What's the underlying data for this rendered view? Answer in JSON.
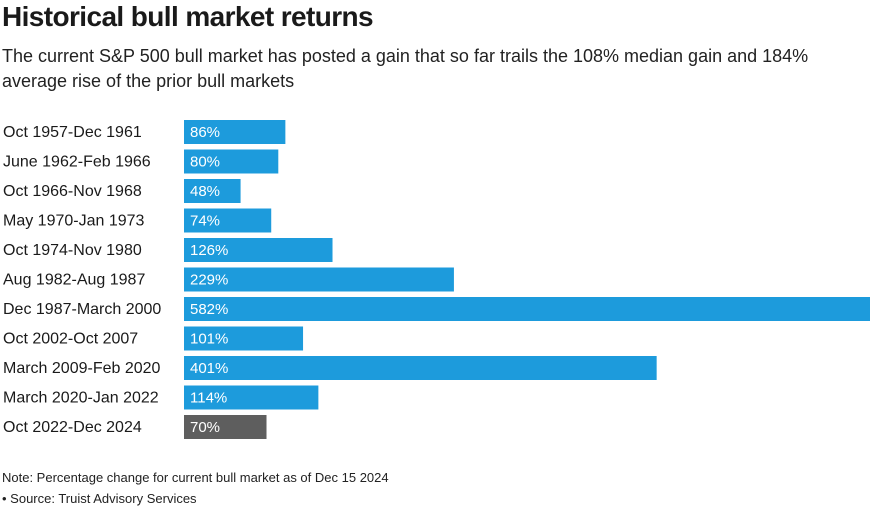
{
  "chart_data": {
    "type": "bar",
    "orientation": "horizontal",
    "title": "Historical bull market returns",
    "subtitle": "The current S&P 500 bull market has posted a gain that so far trails the 108% median gain and 184% average rise of the prior bull markets",
    "categories": [
      "Oct 1957-Dec 1961",
      "June 1962-Feb 1966",
      "Oct 1966-Nov 1968",
      "May 1970-Jan 1973",
      "Oct 1974-Nov 1980",
      "Aug 1982-Aug 1987",
      "Dec 1987-March 2000",
      "Oct 2002-Oct 2007",
      "March 2009-Feb 2020",
      "March 2020-Jan 2022",
      "Oct 2022-Dec 2024"
    ],
    "values": [
      86,
      80,
      48,
      74,
      126,
      229,
      582,
      101,
      401,
      114,
      70
    ],
    "value_labels": [
      "86%",
      "80%",
      "48%",
      "74%",
      "126%",
      "229%",
      "582%",
      "101%",
      "401%",
      "114%",
      "70%"
    ],
    "highlight_index": 10,
    "xlim": [
      0,
      582
    ],
    "grid": false,
    "legend": "none"
  },
  "colors": {
    "bar": "#1d9bdc",
    "highlight": "#5e5e5e"
  },
  "notes": {
    "note": "Note: Percentage change for current bull market as of Dec 15 2024",
    "source": "• Source: Truist Advisory Services"
  }
}
